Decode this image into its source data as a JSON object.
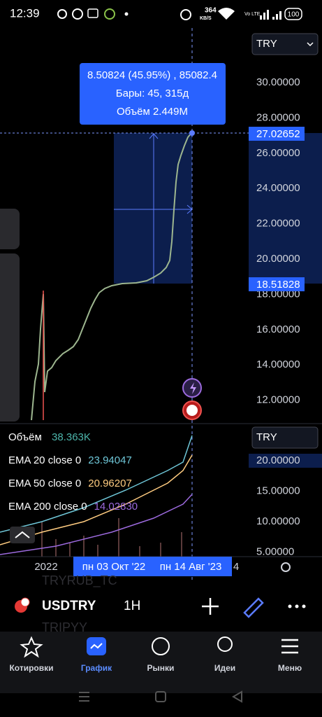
{
  "status_bar": {
    "time": "12:39",
    "network_speed": "364",
    "speed_unit": "KB/S",
    "network": "Vo LTE",
    "battery": "100"
  },
  "price_pane": {
    "currency": "TRY",
    "axis_labels": [
      "30.00000",
      "28.00000",
      "26.00000",
      "24.00000",
      "22.00000",
      "20.00000",
      "18.00000",
      "16.00000",
      "14.00000",
      "12.00000"
    ],
    "current_price": "27.02652",
    "range_low": "18.51828",
    "tooltip": [
      "8.50824 (45.95%) , 85082.4",
      "Бары: 45, 315д",
      "Объём 2.449M"
    ]
  },
  "indicator_pane": {
    "currency": "TRY",
    "volume": {
      "name": "Объём",
      "value": "38.363K"
    },
    "emas": [
      {
        "name": "EMA 20 close 0",
        "value": "23.94047"
      },
      {
        "name": "EMA 50 close 0",
        "value": "20.96207"
      },
      {
        "name": "EMA 200 close 0",
        "value": "14.02830"
      }
    ],
    "axis_labels": [
      "20.00000",
      "15.00000",
      "10.00000",
      "5.00000"
    ]
  },
  "time_axis": {
    "labels": [
      "2022",
      "пн 03 Окт '22",
      "пн 14 Авг '23",
      "4"
    ]
  },
  "toolbar": {
    "symbol": "USDTRY",
    "interval": "1H",
    "watermarks": [
      "TRYRUB_TC",
      "TRIPYY"
    ]
  },
  "bottom_nav": {
    "items": [
      "Котировки",
      "График",
      "Рынки",
      "Идеи",
      "Меню"
    ]
  }
}
